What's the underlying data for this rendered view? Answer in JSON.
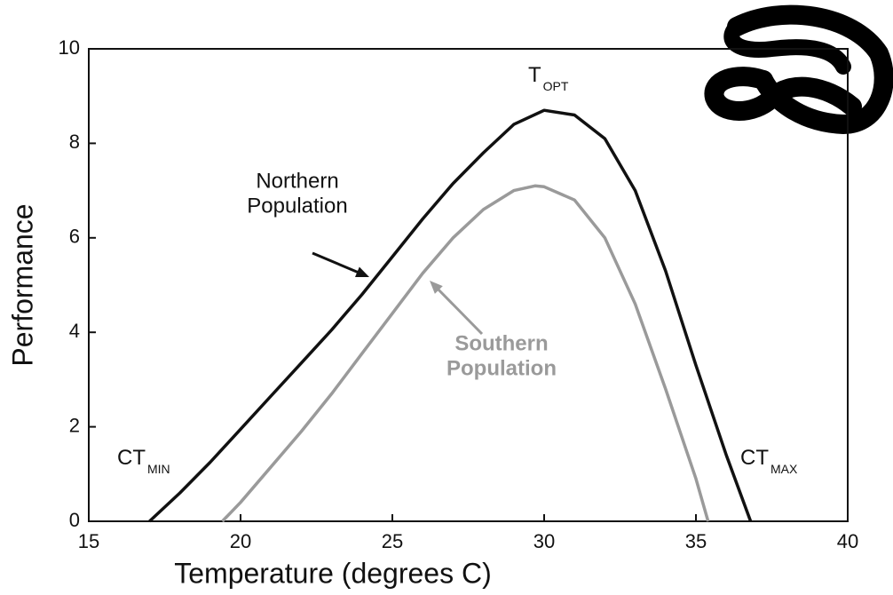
{
  "chart_data": {
    "type": "line",
    "xlabel": "Temperature (degrees C)",
    "ylabel": "Performance",
    "xlim": [
      15,
      40
    ],
    "xticks": [
      15,
      20,
      25,
      30,
      35,
      40
    ],
    "ylim": [
      0,
      10
    ],
    "yticks": [
      0,
      2,
      4,
      6,
      8,
      10
    ],
    "grid": false,
    "series": [
      {
        "name": "Northern Population",
        "color": "#111111",
        "x": [
          17,
          18,
          19,
          20,
          21,
          22,
          23,
          24,
          25,
          26,
          27,
          28,
          29,
          30,
          31,
          32,
          33,
          34,
          35,
          36,
          36.8
        ],
        "values": [
          0,
          0.6,
          1.25,
          1.95,
          2.65,
          3.35,
          4.05,
          4.8,
          5.6,
          6.4,
          7.15,
          7.8,
          8.4,
          8.7,
          8.6,
          8.1,
          7.0,
          5.3,
          3.3,
          1.4,
          0
        ]
      },
      {
        "name": "Southern Population",
        "color": "#9a9a9a",
        "x": [
          19.4,
          20,
          21,
          22,
          23,
          24,
          25,
          26,
          27,
          28,
          29,
          29.7,
          30,
          31,
          32,
          33,
          34,
          35,
          35.4
        ],
        "values": [
          0,
          0.4,
          1.15,
          1.9,
          2.7,
          3.55,
          4.4,
          5.25,
          6.0,
          6.6,
          7.0,
          7.1,
          7.08,
          6.8,
          6.0,
          4.6,
          2.8,
          0.9,
          0
        ]
      }
    ],
    "labels": [
      {
        "lines": [
          "Northern",
          "Population"
        ],
        "color": "#111111"
      },
      {
        "lines": [
          "Southern",
          "Population"
        ],
        "color": "#9a9a9a"
      }
    ],
    "annotations": [
      {
        "text": "T",
        "subscript": "OPT"
      },
      {
        "text": "CT",
        "subscript": "MIN"
      },
      {
        "text": "CT",
        "subscript": "MAX"
      }
    ]
  }
}
